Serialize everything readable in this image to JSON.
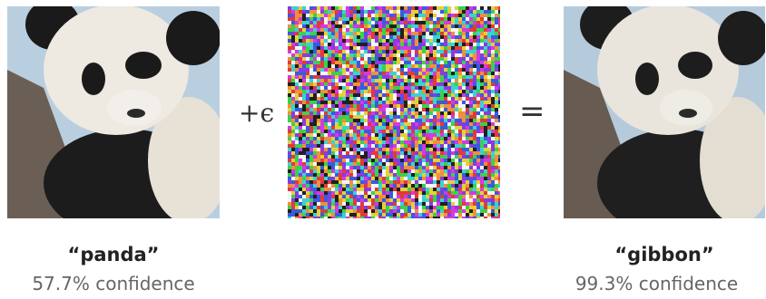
{
  "operators": {
    "plus_epsilon": "+ϵ",
    "equals": "="
  },
  "left": {
    "label": "“panda”",
    "confidence": "57.7% confidence"
  },
  "right": {
    "label": "“gibbon”",
    "confidence": "99.3% confidence"
  },
  "colors": {
    "fur_white": "#ece8e0",
    "fur_black": "#1a1a1a",
    "background_sky": "#b9cfe0",
    "branch": "#6b5f55",
    "noise_palette": [
      "#e23a3a",
      "#3ad24a",
      "#3a5ae2",
      "#e2d23a",
      "#d23ae2",
      "#3ad2d2",
      "#f5f5f5",
      "#202020",
      "#f0903a",
      "#8a3ae2"
    ]
  }
}
